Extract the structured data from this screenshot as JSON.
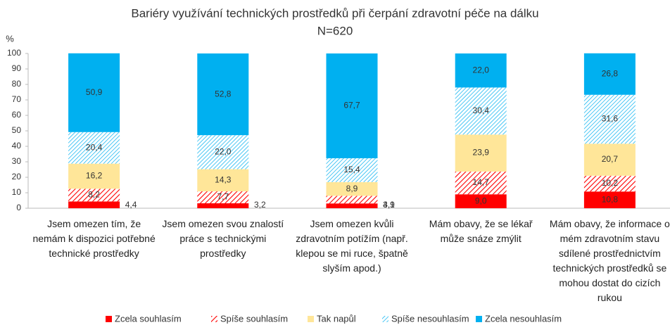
{
  "chart_data": {
    "type": "stacked_bar",
    "title": "Bariéry využívání technických prostředků při čerpání zdravotní péče na dálku",
    "subtitle": "N=620",
    "y_axis_label": "%",
    "categories": [
      "Jsem omezen tím, že nemám k dispozici potřebné technické prostředky",
      "Jsem omezen svou znalostí práce s technickými prostředky",
      "Jsem omezen kvůli zdravotním potížím (např. klepou se mi ruce, špatně slyším apod.)",
      "Mám obavy, že se lékař může snáze zmýlit",
      "Mám obavy, že informace o mém zdravotním stavu sdílené prostřednictvím technických prostředků se mohou dostat do cizích rukou"
    ],
    "series": [
      {
        "name": "Zcela souhlasím",
        "color": "#ff0000",
        "hatch": false,
        "values": [
          4.4,
          3.2,
          3.1,
          9.0,
          10.8
        ],
        "value_labels": [
          "4,4",
          "3,2",
          "3,1",
          "9,0",
          "10,8"
        ]
      },
      {
        "name": "Spíše souhlasím",
        "color": "#ff0000",
        "hatch": true,
        "values": [
          8.2,
          7.7,
          4.9,
          14.7,
          10.2
        ],
        "value_labels": [
          "8,2",
          "7,7",
          "4,9",
          "14,7",
          "10,2"
        ]
      },
      {
        "name": "Tak napůl",
        "color": "#ffe699",
        "hatch": false,
        "values": [
          16.2,
          14.3,
          8.9,
          23.9,
          20.7
        ],
        "value_labels": [
          "16,2",
          "14,3",
          "8,9",
          "23,9",
          "20,7"
        ]
      },
      {
        "name": "Spíše nesouhlasím",
        "color": "#00b0f0",
        "hatch": true,
        "values": [
          20.4,
          22.0,
          15.4,
          30.4,
          31.6
        ],
        "value_labels": [
          "20,4",
          "22,0",
          "15,4",
          "30,4",
          "31,6"
        ]
      },
      {
        "name": "Zcela nesouhlasím",
        "color": "#00b0f0",
        "hatch": false,
        "values": [
          50.9,
          52.8,
          67.7,
          22.0,
          26.8
        ],
        "value_labels": [
          "50,9",
          "52,8",
          "67,7",
          "22,0",
          "26,8"
        ]
      }
    ],
    "ylim": [
      0,
      100
    ],
    "yticks": [
      0,
      10,
      20,
      30,
      40,
      50,
      60,
      70,
      80,
      90,
      100
    ],
    "grid": false,
    "legend": "bottom"
  }
}
